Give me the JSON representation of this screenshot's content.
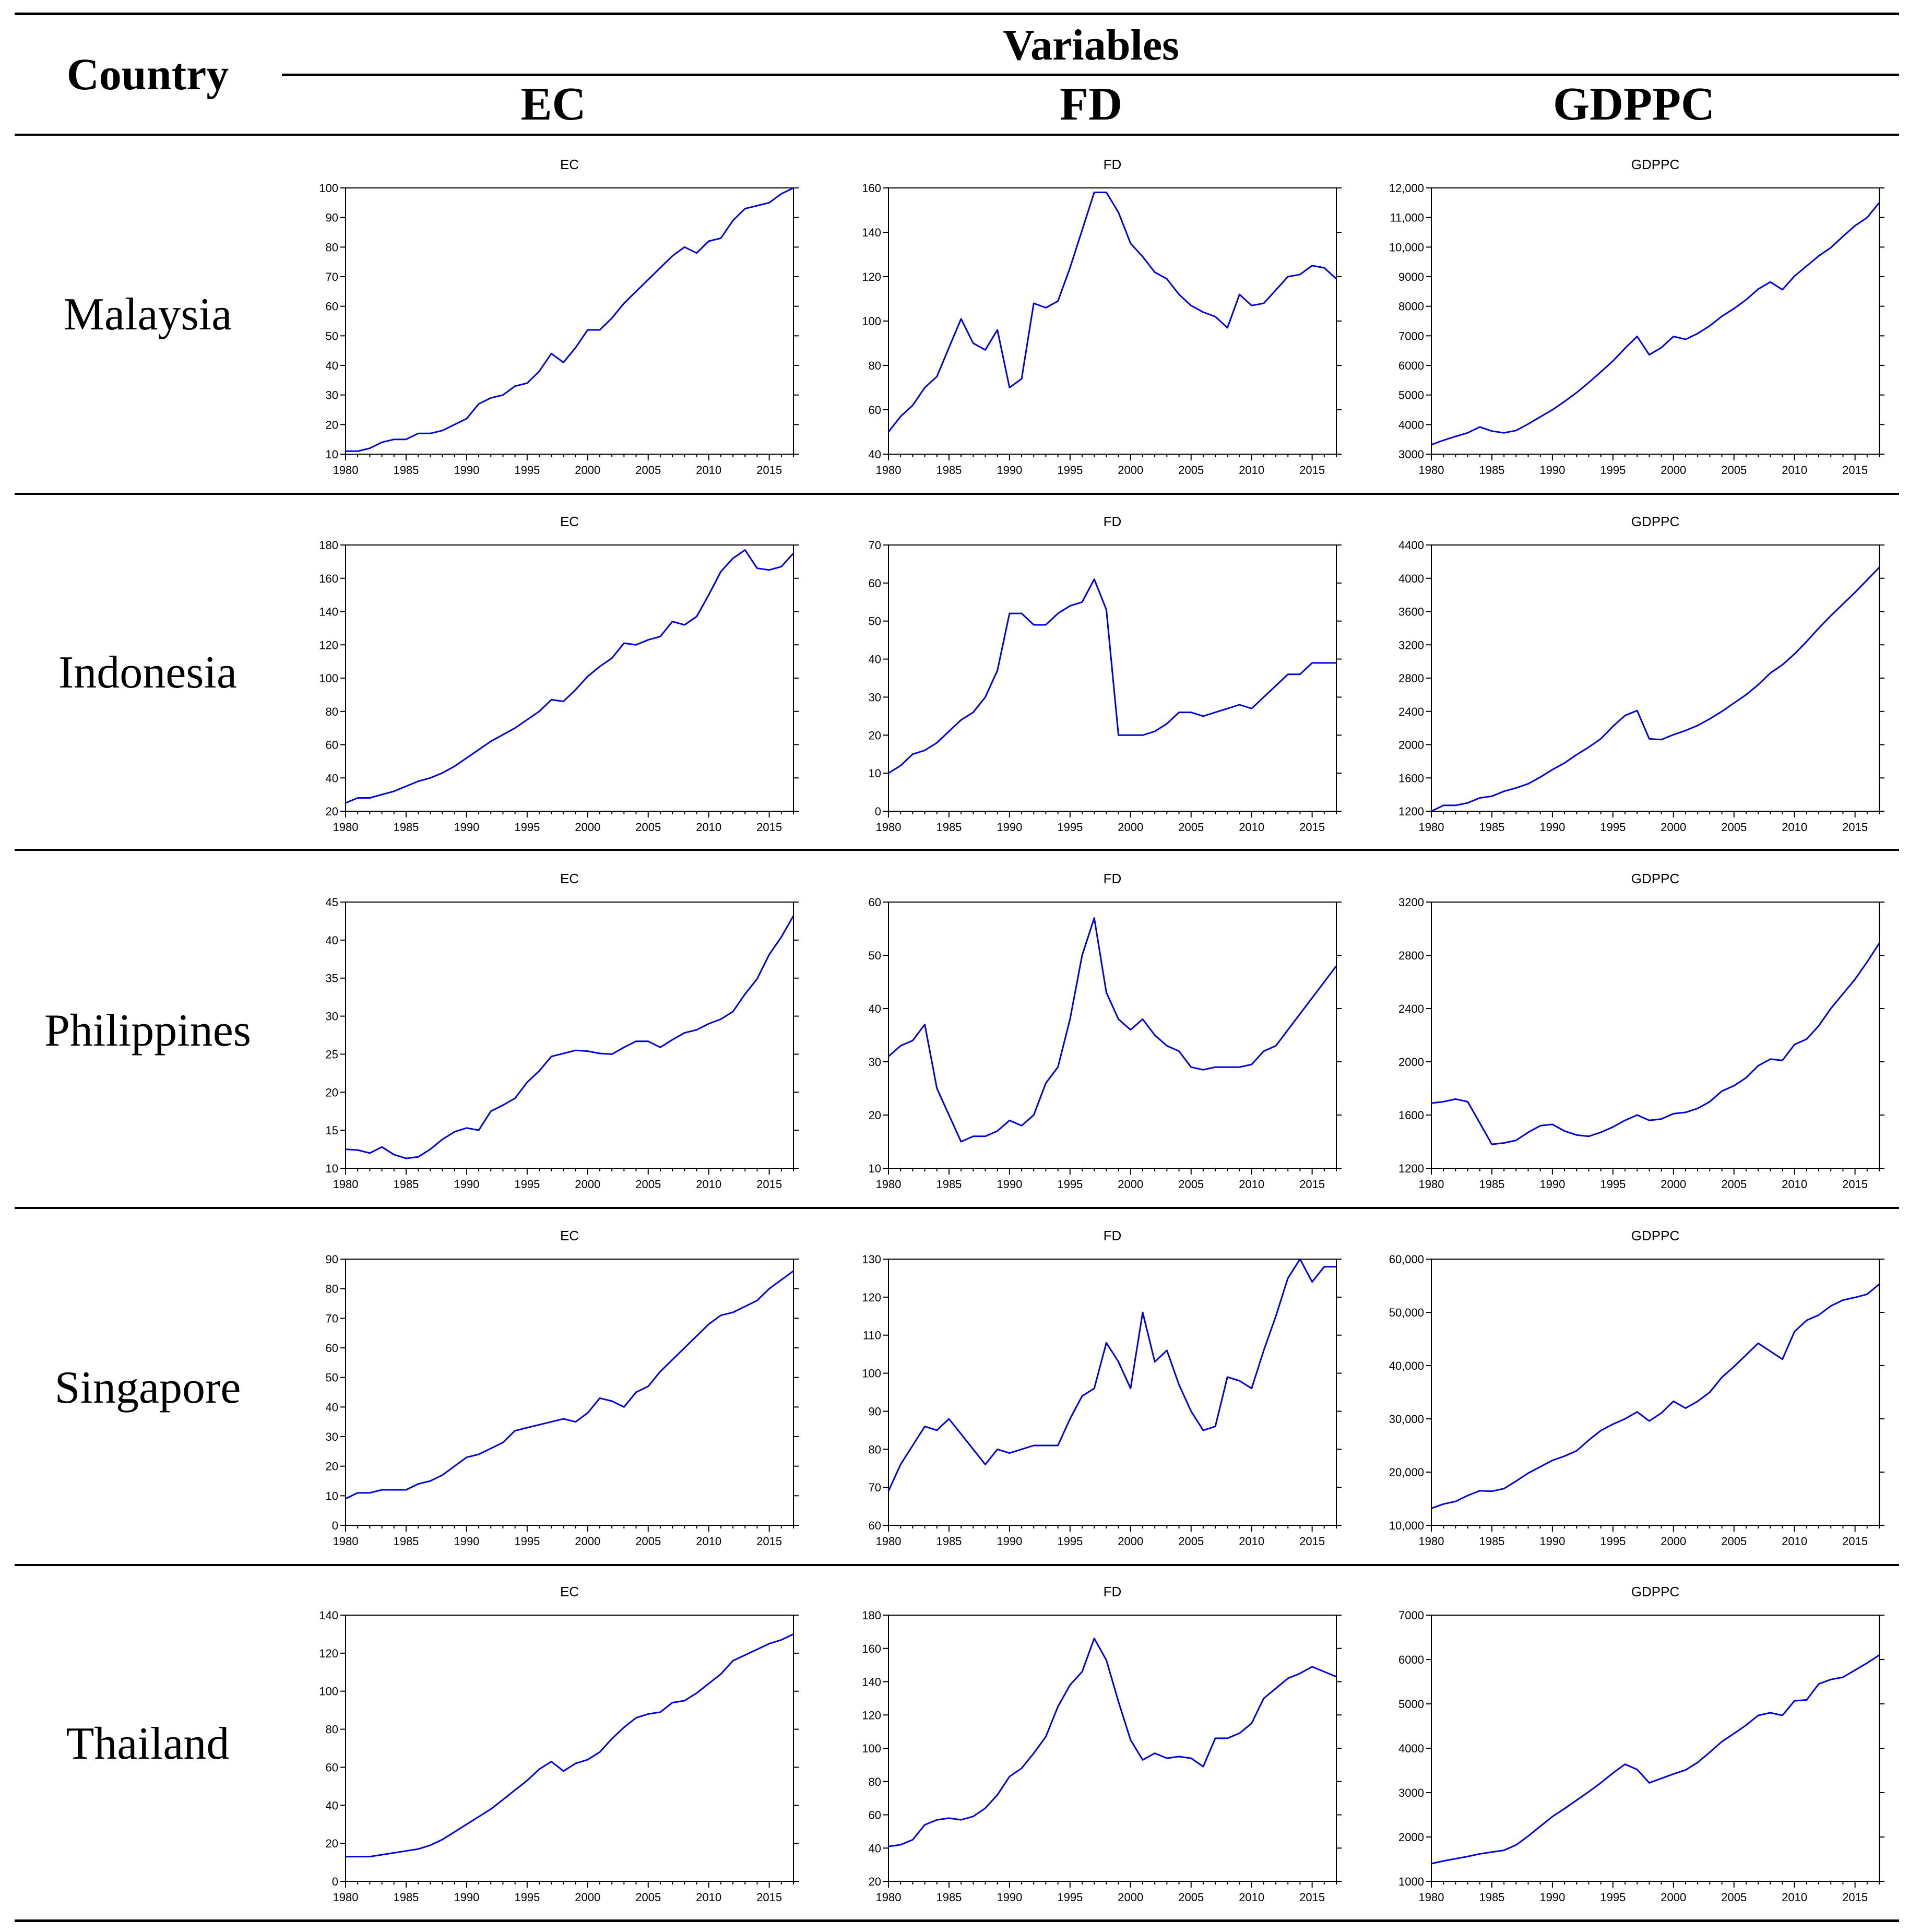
{
  "header": {
    "country_label": "Country",
    "variables_label": "Variables",
    "columns": [
      "EC",
      "FD",
      "GDPPC"
    ]
  },
  "countries": [
    "Malaysia",
    "Indonesia",
    "Philippines",
    "Singapore",
    "Thailand"
  ],
  "colors": {
    "line": "#0000dd",
    "axis": "#000000",
    "rule": "#000000"
  },
  "chart_data": [
    {
      "type": "line",
      "country": "Malaysia",
      "title": "EC",
      "xlabel": "",
      "ylabel": "",
      "x_start": 1980,
      "x_end": 2017,
      "xticks": [
        1980,
        1985,
        1990,
        1995,
        2000,
        2005,
        2010,
        2015
      ],
      "ylim": [
        10,
        100
      ],
      "yticks": [
        10,
        20,
        30,
        40,
        50,
        60,
        70,
        80,
        90,
        100
      ],
      "yticklabels": [
        "10",
        "20",
        "30",
        "40",
        "50",
        "60",
        "70",
        "80",
        "90",
        "100"
      ],
      "values": [
        11,
        11,
        12,
        14,
        15,
        15,
        17,
        17,
        18,
        20,
        22,
        27,
        29,
        30,
        33,
        34,
        38,
        44,
        41,
        46,
        52,
        52,
        56,
        61,
        65,
        69,
        73,
        77,
        80,
        78,
        82,
        83,
        89,
        93,
        94,
        95,
        98,
        100
      ]
    },
    {
      "type": "line",
      "country": "Malaysia",
      "title": "FD",
      "xlabel": "",
      "ylabel": "",
      "x_start": 1980,
      "x_end": 2017,
      "xticks": [
        1980,
        1985,
        1990,
        1995,
        2000,
        2005,
        2010,
        2015
      ],
      "ylim": [
        40,
        160
      ],
      "yticks": [
        40,
        60,
        80,
        100,
        120,
        140,
        160
      ],
      "yticklabels": [
        "40",
        "60",
        "80",
        "100",
        "120",
        "140",
        "160"
      ],
      "values": [
        50,
        57,
        62,
        70,
        75,
        88,
        101,
        90,
        87,
        96,
        70,
        74,
        108,
        106,
        109,
        124,
        141,
        158,
        158,
        149,
        135,
        129,
        122,
        119,
        112,
        107,
        104,
        102,
        97,
        112,
        107,
        108,
        114,
        120,
        121,
        125,
        124,
        119
      ]
    },
    {
      "type": "line",
      "country": "Malaysia",
      "title": "GDPPC",
      "xlabel": "",
      "ylabel": "",
      "x_start": 1980,
      "x_end": 2017,
      "xticks": [
        1980,
        1985,
        1990,
        1995,
        2000,
        2005,
        2010,
        2015
      ],
      "ylim": [
        3000,
        12000
      ],
      "yticks": [
        3000,
        4000,
        5000,
        6000,
        7000,
        8000,
        9000,
        10000,
        11000,
        12000
      ],
      "yticklabels": [
        "3000",
        "4000",
        "5000",
        "6000",
        "7000",
        "8000",
        "9000",
        "10,000",
        "11,000",
        "12,000"
      ],
      "values": [
        3320,
        3470,
        3600,
        3720,
        3920,
        3780,
        3720,
        3800,
        4020,
        4260,
        4500,
        4780,
        5080,
        5420,
        5780,
        6150,
        6580,
        6980,
        6360,
        6600,
        6980,
        6880,
        7080,
        7340,
        7660,
        7920,
        8220,
        8580,
        8820,
        8560,
        9020,
        9360,
        9700,
        9980,
        10360,
        10720,
        11000,
        11500
      ]
    },
    {
      "type": "line",
      "country": "Indonesia",
      "title": "EC",
      "xlabel": "",
      "ylabel": "",
      "x_start": 1980,
      "x_end": 2017,
      "xticks": [
        1980,
        1985,
        1990,
        1995,
        2000,
        2005,
        2010,
        2015
      ],
      "ylim": [
        20,
        180
      ],
      "yticks": [
        20,
        40,
        60,
        80,
        100,
        120,
        140,
        160,
        180
      ],
      "yticklabels": [
        "20",
        "40",
        "60",
        "80",
        "100",
        "120",
        "140",
        "160",
        "180"
      ],
      "values": [
        25,
        28,
        28,
        30,
        32,
        35,
        38,
        40,
        43,
        47,
        52,
        57,
        62,
        66,
        70,
        75,
        80,
        87,
        86,
        93,
        101,
        107,
        112,
        121,
        120,
        123,
        125,
        134,
        132,
        137,
        150,
        164,
        172,
        177,
        166,
        165,
        167,
        175
      ]
    },
    {
      "type": "line",
      "country": "Indonesia",
      "title": "FD",
      "xlabel": "",
      "ylabel": "",
      "x_start": 1980,
      "x_end": 2017,
      "xticks": [
        1980,
        1985,
        1990,
        1995,
        2000,
        2005,
        2010,
        2015
      ],
      "ylim": [
        0,
        70
      ],
      "yticks": [
        0,
        10,
        20,
        30,
        40,
        50,
        60,
        70
      ],
      "yticklabels": [
        "0",
        "10",
        "20",
        "30",
        "40",
        "50",
        "60",
        "70"
      ],
      "values": [
        10,
        12,
        15,
        16,
        18,
        21,
        24,
        26,
        30,
        37,
        52,
        52,
        49,
        49,
        52,
        54,
        55,
        61,
        53,
        20,
        20,
        20,
        21,
        23,
        26,
        26,
        25,
        26,
        27,
        28,
        27,
        30,
        33,
        36,
        36,
        39,
        39,
        39
      ]
    },
    {
      "type": "line",
      "country": "Indonesia",
      "title": "GDPPC",
      "xlabel": "",
      "ylabel": "",
      "x_start": 1980,
      "x_end": 2017,
      "xticks": [
        1980,
        1985,
        1990,
        1995,
        2000,
        2005,
        2010,
        2015
      ],
      "ylim": [
        1200,
        4400
      ],
      "yticks": [
        1200,
        1600,
        2000,
        2400,
        2800,
        3200,
        3600,
        4000,
        4400
      ],
      "yticklabels": [
        "1200",
        "1600",
        "2000",
        "2400",
        "2800",
        "3200",
        "3600",
        "4000",
        "4400"
      ],
      "values": [
        1200,
        1270,
        1270,
        1300,
        1360,
        1380,
        1440,
        1480,
        1530,
        1610,
        1700,
        1780,
        1880,
        1970,
        2070,
        2220,
        2350,
        2410,
        2070,
        2060,
        2120,
        2170,
        2230,
        2310,
        2400,
        2500,
        2600,
        2720,
        2860,
        2960,
        3090,
        3240,
        3400,
        3550,
        3690,
        3830,
        3980,
        4130
      ]
    },
    {
      "type": "line",
      "country": "Philippines",
      "title": "EC",
      "xlabel": "",
      "ylabel": "",
      "x_start": 1980,
      "x_end": 2017,
      "xticks": [
        1980,
        1985,
        1990,
        1995,
        2000,
        2005,
        2010,
        2015
      ],
      "ylim": [
        10,
        45
      ],
      "yticks": [
        10,
        15,
        20,
        25,
        30,
        35,
        40,
        45
      ],
      "yticklabels": [
        "10",
        "15",
        "20",
        "25",
        "30",
        "35",
        "40",
        "45"
      ],
      "values": [
        12.5,
        12.4,
        12,
        12.8,
        11.8,
        11.3,
        11.5,
        12.5,
        13.8,
        14.8,
        15.3,
        15,
        17.5,
        18.3,
        19.2,
        21.3,
        22.8,
        24.7,
        25.1,
        25.5,
        25.4,
        25.1,
        25,
        25.9,
        26.7,
        26.7,
        25.9,
        26.9,
        27.8,
        28.2,
        29,
        29.6,
        30.6,
        32.9,
        34.9,
        38.1,
        40.4,
        43.2
      ]
    },
    {
      "type": "line",
      "country": "Philippines",
      "title": "FD",
      "xlabel": "",
      "ylabel": "",
      "x_start": 1980,
      "x_end": 2017,
      "xticks": [
        1980,
        1985,
        1990,
        1995,
        2000,
        2005,
        2010,
        2015
      ],
      "ylim": [
        10,
        60
      ],
      "yticks": [
        10,
        20,
        30,
        40,
        50,
        60
      ],
      "yticklabels": [
        "10",
        "20",
        "30",
        "40",
        "50",
        "60"
      ],
      "values": [
        31,
        33,
        34,
        37,
        25,
        20,
        15,
        16,
        16,
        17,
        19,
        18,
        20,
        26,
        29,
        38,
        50,
        57,
        43,
        38,
        36,
        38,
        35,
        33,
        32,
        29,
        28.5,
        29,
        29,
        29,
        29.5,
        32,
        33,
        36,
        39,
        42,
        45,
        48
      ]
    },
    {
      "type": "line",
      "country": "Philippines",
      "title": "GDPPC",
      "xlabel": "",
      "ylabel": "",
      "x_start": 1980,
      "x_end": 2017,
      "xticks": [
        1980,
        1985,
        1990,
        1995,
        2000,
        2005,
        2010,
        2015
      ],
      "ylim": [
        1200,
        3200
      ],
      "yticks": [
        1200,
        1600,
        2000,
        2400,
        2800,
        3200
      ],
      "yticklabels": [
        "1200",
        "1600",
        "2000",
        "2400",
        "2800",
        "3200"
      ],
      "values": [
        1690,
        1700,
        1720,
        1700,
        1540,
        1380,
        1390,
        1410,
        1470,
        1520,
        1530,
        1480,
        1450,
        1440,
        1470,
        1510,
        1560,
        1600,
        1560,
        1570,
        1610,
        1620,
        1650,
        1700,
        1780,
        1820,
        1880,
        1970,
        2020,
        2010,
        2130,
        2170,
        2270,
        2400,
        2510,
        2620,
        2750,
        2890
      ]
    },
    {
      "type": "line",
      "country": "Singapore",
      "title": "EC",
      "xlabel": "",
      "ylabel": "",
      "x_start": 1980,
      "x_end": 2017,
      "xticks": [
        1980,
        1985,
        1990,
        1995,
        2000,
        2005,
        2010,
        2015
      ],
      "ylim": [
        0,
        90
      ],
      "yticks": [
        0,
        10,
        20,
        30,
        40,
        50,
        60,
        70,
        80,
        90
      ],
      "yticklabels": [
        "0",
        "10",
        "20",
        "30",
        "40",
        "50",
        "60",
        "70",
        "80",
        "90"
      ],
      "values": [
        9,
        11,
        11,
        12,
        12,
        12,
        14,
        15,
        17,
        20,
        23,
        24,
        26,
        28,
        32,
        33,
        34,
        35,
        36,
        35,
        38,
        43,
        42,
        40,
        45,
        47,
        52,
        56,
        60,
        64,
        68,
        71,
        72,
        74,
        76,
        80,
        83,
        86
      ]
    },
    {
      "type": "line",
      "country": "Singapore",
      "title": "FD",
      "xlabel": "",
      "ylabel": "",
      "x_start": 1980,
      "x_end": 2017,
      "xticks": [
        1980,
        1985,
        1990,
        1995,
        2000,
        2005,
        2010,
        2015
      ],
      "ylim": [
        60,
        130
      ],
      "yticks": [
        60,
        70,
        80,
        90,
        100,
        110,
        120,
        130
      ],
      "yticklabels": [
        "60",
        "70",
        "80",
        "90",
        "100",
        "110",
        "120",
        "130"
      ],
      "values": [
        69,
        76,
        81,
        86,
        85,
        88,
        84,
        80,
        76,
        80,
        79,
        80,
        81,
        81,
        81,
        88,
        94,
        96,
        108,
        103,
        96,
        116,
        103,
        106,
        97,
        90,
        85,
        86,
        99,
        98,
        96,
        106,
        115,
        125,
        130,
        124,
        128,
        128
      ]
    },
    {
      "type": "line",
      "country": "Singapore",
      "title": "GDPPC",
      "xlabel": "",
      "ylabel": "",
      "x_start": 1980,
      "x_end": 2017,
      "xticks": [
        1980,
        1985,
        1990,
        1995,
        2000,
        2005,
        2010,
        2015
      ],
      "ylim": [
        10000,
        60000
      ],
      "yticks": [
        10000,
        20000,
        30000,
        40000,
        50000,
        60000
      ],
      "yticklabels": [
        "10,000",
        "20,000",
        "30,000",
        "40,000",
        "50,000",
        "60,000"
      ],
      "values": [
        13200,
        14000,
        14500,
        15600,
        16500,
        16400,
        16900,
        18300,
        19800,
        21000,
        22200,
        23000,
        24000,
        26000,
        27800,
        29000,
        30000,
        31300,
        29600,
        31100,
        33300,
        32000,
        33300,
        35000,
        37800,
        39800,
        42000,
        44200,
        42700,
        41200,
        46400,
        48500,
        49500,
        51200,
        52300,
        52800,
        53400,
        55300
      ]
    },
    {
      "type": "line",
      "country": "Thailand",
      "title": "EC",
      "xlabel": "",
      "ylabel": "",
      "x_start": 1980,
      "x_end": 2017,
      "xticks": [
        1980,
        1985,
        1990,
        1995,
        2000,
        2005,
        2010,
        2015
      ],
      "ylim": [
        0,
        140
      ],
      "yticks": [
        0,
        20,
        40,
        60,
        80,
        100,
        120,
        140
      ],
      "yticklabels": [
        "0",
        "20",
        "40",
        "60",
        "80",
        "100",
        "120",
        "140"
      ],
      "values": [
        13,
        13,
        13,
        14,
        15,
        16,
        17,
        19,
        22,
        26,
        30,
        34,
        38,
        43,
        48,
        53,
        59,
        63,
        58,
        62,
        64,
        68,
        75,
        81,
        86,
        88,
        89,
        94,
        95,
        99,
        104,
        109,
        116,
        119,
        122,
        125,
        127,
        130
      ]
    },
    {
      "type": "line",
      "country": "Thailand",
      "title": "FD",
      "xlabel": "",
      "ylabel": "",
      "x_start": 1980,
      "x_end": 2017,
      "xticks": [
        1980,
        1985,
        1990,
        1995,
        2000,
        2005,
        2010,
        2015
      ],
      "ylim": [
        20,
        180
      ],
      "yticks": [
        20,
        40,
        60,
        80,
        100,
        120,
        140,
        160,
        180
      ],
      "yticklabels": [
        "20",
        "40",
        "60",
        "80",
        "100",
        "120",
        "140",
        "160",
        "180"
      ],
      "values": [
        41,
        42,
        45,
        54,
        57,
        58,
        57,
        59,
        64,
        72,
        83,
        88,
        97,
        107,
        125,
        138,
        146,
        166,
        153,
        128,
        105,
        93,
        97,
        94,
        95,
        94,
        89,
        106,
        106,
        109,
        115,
        130,
        136,
        142,
        145,
        149,
        146,
        143
      ]
    },
    {
      "type": "line",
      "country": "Thailand",
      "title": "GDPPC",
      "xlabel": "",
      "ylabel": "",
      "x_start": 1980,
      "x_end": 2017,
      "xticks": [
        1980,
        1985,
        1990,
        1995,
        2000,
        2005,
        2010,
        2015
      ],
      "ylim": [
        1000,
        7000
      ],
      "yticks": [
        1000,
        2000,
        3000,
        4000,
        5000,
        6000,
        7000
      ],
      "yticklabels": [
        "1000",
        "2000",
        "3000",
        "4000",
        "5000",
        "6000",
        "7000"
      ],
      "values": [
        1400,
        1460,
        1510,
        1560,
        1620,
        1660,
        1700,
        1820,
        2020,
        2240,
        2460,
        2640,
        2830,
        3020,
        3220,
        3440,
        3640,
        3520,
        3220,
        3320,
        3420,
        3510,
        3680,
        3910,
        4150,
        4330,
        4520,
        4740,
        4800,
        4740,
        5070,
        5090,
        5450,
        5550,
        5600,
        5760,
        5920,
        6100
      ]
    }
  ]
}
